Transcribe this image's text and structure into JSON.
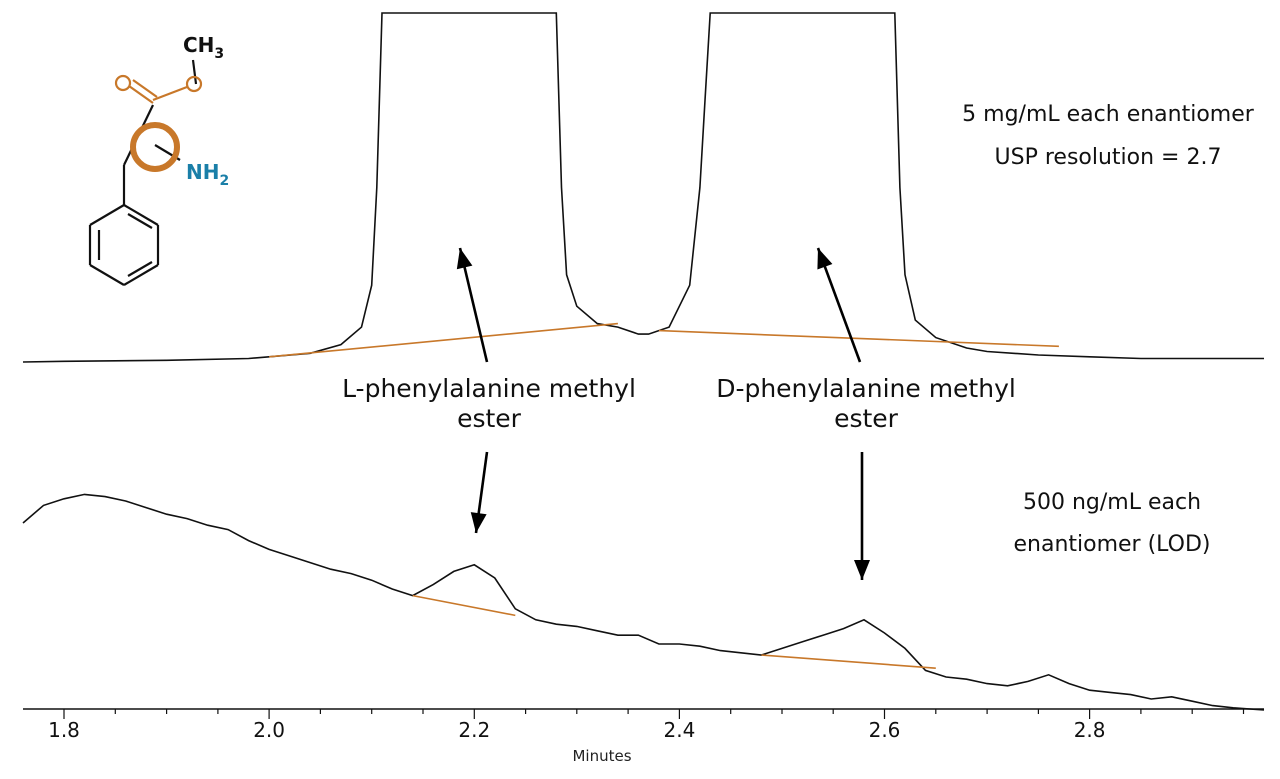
{
  "colors": {
    "trace": "#111111",
    "baseline": "#c8782a",
    "oxygen": "#c8782a",
    "nitrogen": "#1a7fa8",
    "stereocenter": "#c8782a",
    "arrow": "#000000"
  },
  "chart_data": {
    "type": "line",
    "xlabel": "Minutes",
    "xlim": [
      1.76,
      2.97
    ],
    "x_ticks": [
      "1.8",
      "2.0",
      "2.2",
      "2.4",
      "2.6",
      "2.8"
    ],
    "grid": false,
    "series": [
      {
        "condition_lines": [
          "5 mg/mL each enantiomer",
          "USP resolution = 2.7"
        ],
        "x": [
          1.76,
          1.8,
          1.9,
          1.98,
          2.0,
          2.04,
          2.07,
          2.09,
          2.1,
          2.105,
          2.11,
          2.28,
          2.285,
          2.29,
          2.3,
          2.32,
          2.34,
          2.36,
          2.37,
          2.39,
          2.41,
          2.42,
          2.425,
          2.43,
          2.61,
          2.615,
          2.62,
          2.63,
          2.65,
          2.68,
          2.7,
          2.75,
          2.8,
          2.85,
          2.9,
          2.97
        ],
        "y": [
          0.0,
          0.002,
          0.005,
          0.01,
          0.015,
          0.025,
          0.05,
          0.1,
          0.22,
          0.5,
          1.0,
          1.0,
          0.5,
          0.25,
          0.16,
          0.11,
          0.1,
          0.08,
          0.08,
          0.1,
          0.22,
          0.5,
          0.75,
          1.0,
          1.0,
          0.5,
          0.25,
          0.12,
          0.07,
          0.04,
          0.03,
          0.02,
          0.015,
          0.01,
          0.01,
          0.01
        ],
        "baselines": [
          {
            "x": [
              2.0,
              2.34
            ],
            "y": [
              0.015,
              0.11
            ]
          },
          {
            "x": [
              2.38,
              2.77
            ],
            "y": [
              0.09,
              0.045
            ]
          }
        ]
      },
      {
        "condition_lines": [
          "500 ng/mL each",
          "enantiomer (LOD)"
        ],
        "x": [
          1.76,
          1.78,
          1.8,
          1.82,
          1.84,
          1.86,
          1.88,
          1.9,
          1.92,
          1.94,
          1.96,
          1.98,
          2.0,
          2.02,
          2.04,
          2.06,
          2.08,
          2.1,
          2.12,
          2.14,
          2.16,
          2.18,
          2.2,
          2.22,
          2.24,
          2.26,
          2.28,
          2.3,
          2.32,
          2.34,
          2.36,
          2.38,
          2.4,
          2.42,
          2.44,
          2.46,
          2.48,
          2.5,
          2.52,
          2.54,
          2.56,
          2.58,
          2.6,
          2.62,
          2.64,
          2.66,
          2.68,
          2.7,
          2.72,
          2.74,
          2.76,
          2.78,
          2.8,
          2.82,
          2.84,
          2.86,
          2.88,
          2.9,
          2.92,
          2.94,
          2.97
        ],
        "y": [
          0.75,
          0.83,
          0.86,
          0.88,
          0.87,
          0.85,
          0.82,
          0.79,
          0.77,
          0.74,
          0.72,
          0.67,
          0.63,
          0.6,
          0.57,
          0.54,
          0.52,
          0.49,
          0.45,
          0.42,
          0.47,
          0.53,
          0.56,
          0.5,
          0.36,
          0.31,
          0.29,
          0.28,
          0.26,
          0.24,
          0.24,
          0.2,
          0.2,
          0.19,
          0.17,
          0.16,
          0.15,
          0.18,
          0.21,
          0.24,
          0.27,
          0.31,
          0.25,
          0.18,
          0.08,
          0.05,
          0.04,
          0.02,
          0.01,
          0.03,
          0.06,
          0.02,
          -0.01,
          -0.02,
          -0.03,
          -0.05,
          -0.04,
          -0.06,
          -0.08,
          -0.09,
          -0.1
        ],
        "baselines": [
          {
            "x": [
              2.14,
              2.24
            ],
            "y": [
              0.42,
              0.33
            ]
          },
          {
            "x": [
              2.48,
              2.65
            ],
            "y": [
              0.15,
              0.09
            ]
          }
        ]
      }
    ],
    "peak_labels": [
      {
        "lines": [
          "L-phenylalanine methyl",
          "ester"
        ],
        "peak_x": 2.2
      },
      {
        "lines": [
          "D-phenylalanine methyl",
          "ester"
        ],
        "peak_x": 2.58
      }
    ]
  },
  "structure": {
    "methyl_label": "CH",
    "methyl_sub": "3",
    "amine_label": "NH",
    "amine_sub": "2"
  }
}
